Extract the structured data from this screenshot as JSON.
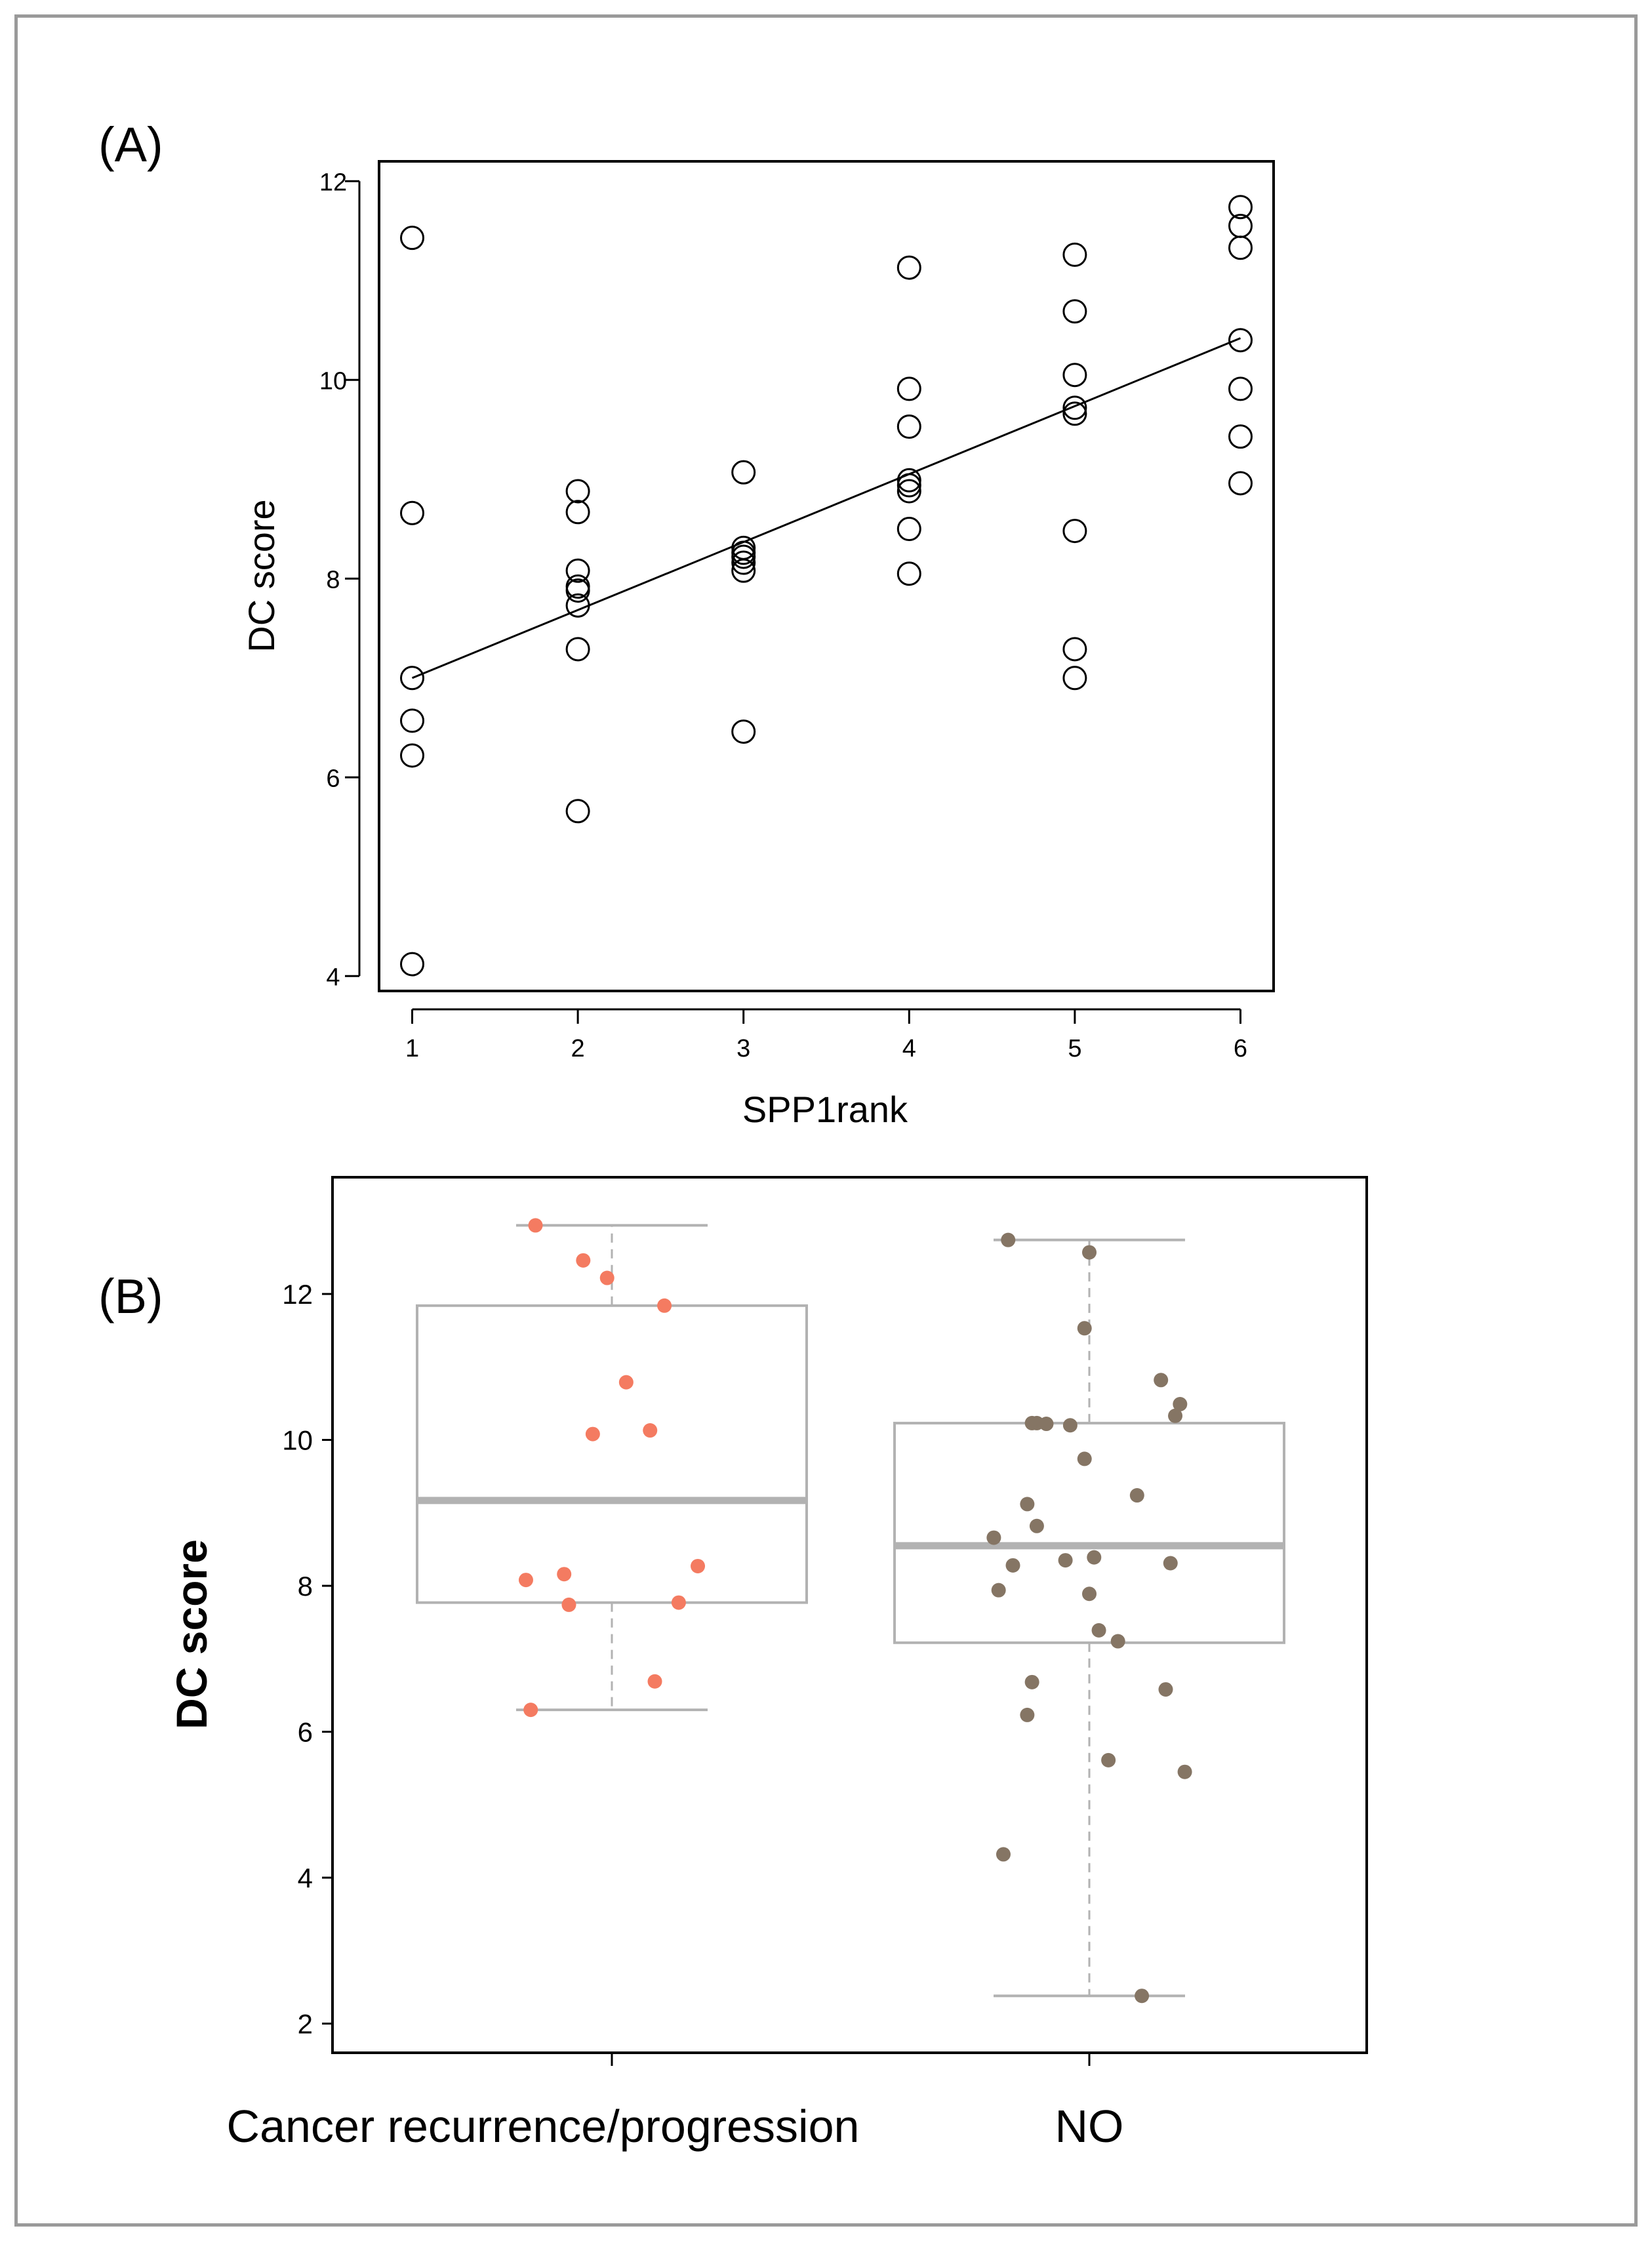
{
  "chart_data": [
    {
      "type": "scatter",
      "panel_label": "(A)",
      "xlabel": "SPP1rank",
      "ylabel": "DC score",
      "xlim": [
        0.8,
        6.2
      ],
      "ylim": [
        3.85,
        12.2
      ],
      "xticks": [
        1,
        2,
        3,
        4,
        5,
        6
      ],
      "yticks": [
        4,
        6,
        8,
        10,
        12
      ],
      "points": [
        {
          "x": 1,
          "y": 11.43
        },
        {
          "x": 1,
          "y": 8.66
        },
        {
          "x": 1,
          "y": 7.0
        },
        {
          "x": 1,
          "y": 6.57
        },
        {
          "x": 1,
          "y": 6.22
        },
        {
          "x": 1,
          "y": 4.12
        },
        {
          "x": 2,
          "y": 8.88
        },
        {
          "x": 2,
          "y": 8.67
        },
        {
          "x": 2,
          "y": 8.08
        },
        {
          "x": 2,
          "y": 7.92
        },
        {
          "x": 2,
          "y": 7.88
        },
        {
          "x": 2,
          "y": 7.73
        },
        {
          "x": 2,
          "y": 7.29
        },
        {
          "x": 2,
          "y": 5.66
        },
        {
          "x": 3,
          "y": 9.07
        },
        {
          "x": 3,
          "y": 8.31
        },
        {
          "x": 3,
          "y": 8.26
        },
        {
          "x": 3,
          "y": 8.22
        },
        {
          "x": 3,
          "y": 8.16
        },
        {
          "x": 3,
          "y": 8.08
        },
        {
          "x": 3,
          "y": 6.46
        },
        {
          "x": 4,
          "y": 11.13
        },
        {
          "x": 4,
          "y": 9.91
        },
        {
          "x": 4,
          "y": 9.53
        },
        {
          "x": 4,
          "y": 8.99
        },
        {
          "x": 4,
          "y": 8.94
        },
        {
          "x": 4,
          "y": 8.88
        },
        {
          "x": 4,
          "y": 8.5
        },
        {
          "x": 4,
          "y": 8.05
        },
        {
          "x": 5,
          "y": 11.26
        },
        {
          "x": 5,
          "y": 10.69
        },
        {
          "x": 5,
          "y": 10.05
        },
        {
          "x": 5,
          "y": 9.72
        },
        {
          "x": 5,
          "y": 9.66
        },
        {
          "x": 5,
          "y": 8.48
        },
        {
          "x": 5,
          "y": 7.29
        },
        {
          "x": 5,
          "y": 7.0
        },
        {
          "x": 6,
          "y": 11.74
        },
        {
          "x": 6,
          "y": 11.55
        },
        {
          "x": 6,
          "y": 11.33
        },
        {
          "x": 6,
          "y": 10.4
        },
        {
          "x": 6,
          "y": 9.91
        },
        {
          "x": 6,
          "y": 9.43
        },
        {
          "x": 6,
          "y": 8.96
        }
      ],
      "regression_line": {
        "x": [
          1,
          6
        ],
        "y": [
          7.0,
          10.42
        ]
      },
      "grid": false
    },
    {
      "type": "box",
      "panel_label": "(B)",
      "ylabel": "DC score",
      "xlabel": "",
      "categories": [
        "Cancer recurrence/progression",
        "NO"
      ],
      "ylim": [
        1.6,
        13.6
      ],
      "yticks": [
        2,
        4,
        6,
        8,
        10,
        12
      ],
      "colors": {
        "box": "#b2b2b2",
        "group1_points": "#f47b61",
        "group2_points": "#857564"
      },
      "boxes": [
        {
          "name": "Cancer recurrence/progression",
          "whisker_low": 6.3,
          "q1": 7.77,
          "median": 9.17,
          "q3": 11.84,
          "whisker_high": 12.94
        },
        {
          "name": "NO",
          "whisker_low": 2.38,
          "q1": 7.22,
          "median": 8.55,
          "q3": 10.23,
          "whisker_high": 12.74
        }
      ],
      "jitter_points": [
        [
          {
            "x": 0.84,
            "y": 12.94
          },
          {
            "x": 0.94,
            "y": 12.46
          },
          {
            "x": 0.99,
            "y": 12.22
          },
          {
            "x": 1.11,
            "y": 11.84
          },
          {
            "x": 1.03,
            "y": 10.79
          },
          {
            "x": 0.96,
            "y": 10.08
          },
          {
            "x": 1.08,
            "y": 10.13
          },
          {
            "x": 0.82,
            "y": 8.08
          },
          {
            "x": 0.9,
            "y": 8.16
          },
          {
            "x": 1.18,
            "y": 8.27
          },
          {
            "x": 0.91,
            "y": 7.74
          },
          {
            "x": 1.14,
            "y": 7.77
          },
          {
            "x": 1.09,
            "y": 6.69
          },
          {
            "x": 0.83,
            "y": 6.3
          }
        ],
        [
          {
            "x": 1.83,
            "y": 12.74
          },
          {
            "x": 2.0,
            "y": 12.57
          },
          {
            "x": 1.99,
            "y": 11.53
          },
          {
            "x": 2.15,
            "y": 10.82
          },
          {
            "x": 2.19,
            "y": 10.49
          },
          {
            "x": 2.18,
            "y": 10.33
          },
          {
            "x": 1.88,
            "y": 10.23
          },
          {
            "x": 1.89,
            "y": 10.23
          },
          {
            "x": 1.91,
            "y": 10.22
          },
          {
            "x": 1.96,
            "y": 10.2
          },
          {
            "x": 1.99,
            "y": 9.74
          },
          {
            "x": 2.1,
            "y": 9.24
          },
          {
            "x": 1.87,
            "y": 9.12
          },
          {
            "x": 1.89,
            "y": 8.82
          },
          {
            "x": 1.8,
            "y": 8.66
          },
          {
            "x": 1.84,
            "y": 8.28
          },
          {
            "x": 1.95,
            "y": 8.35
          },
          {
            "x": 2.01,
            "y": 8.39
          },
          {
            "x": 2.17,
            "y": 8.31
          },
          {
            "x": 1.81,
            "y": 7.94
          },
          {
            "x": 2.0,
            "y": 7.89
          },
          {
            "x": 2.02,
            "y": 7.39
          },
          {
            "x": 2.06,
            "y": 7.24
          },
          {
            "x": 1.88,
            "y": 6.68
          },
          {
            "x": 2.16,
            "y": 6.58
          },
          {
            "x": 1.87,
            "y": 6.23
          },
          {
            "x": 2.04,
            "y": 5.61
          },
          {
            "x": 2.2,
            "y": 5.45
          },
          {
            "x": 1.82,
            "y": 4.32
          },
          {
            "x": 2.11,
            "y": 2.38
          }
        ]
      ],
      "grid": false
    }
  ]
}
